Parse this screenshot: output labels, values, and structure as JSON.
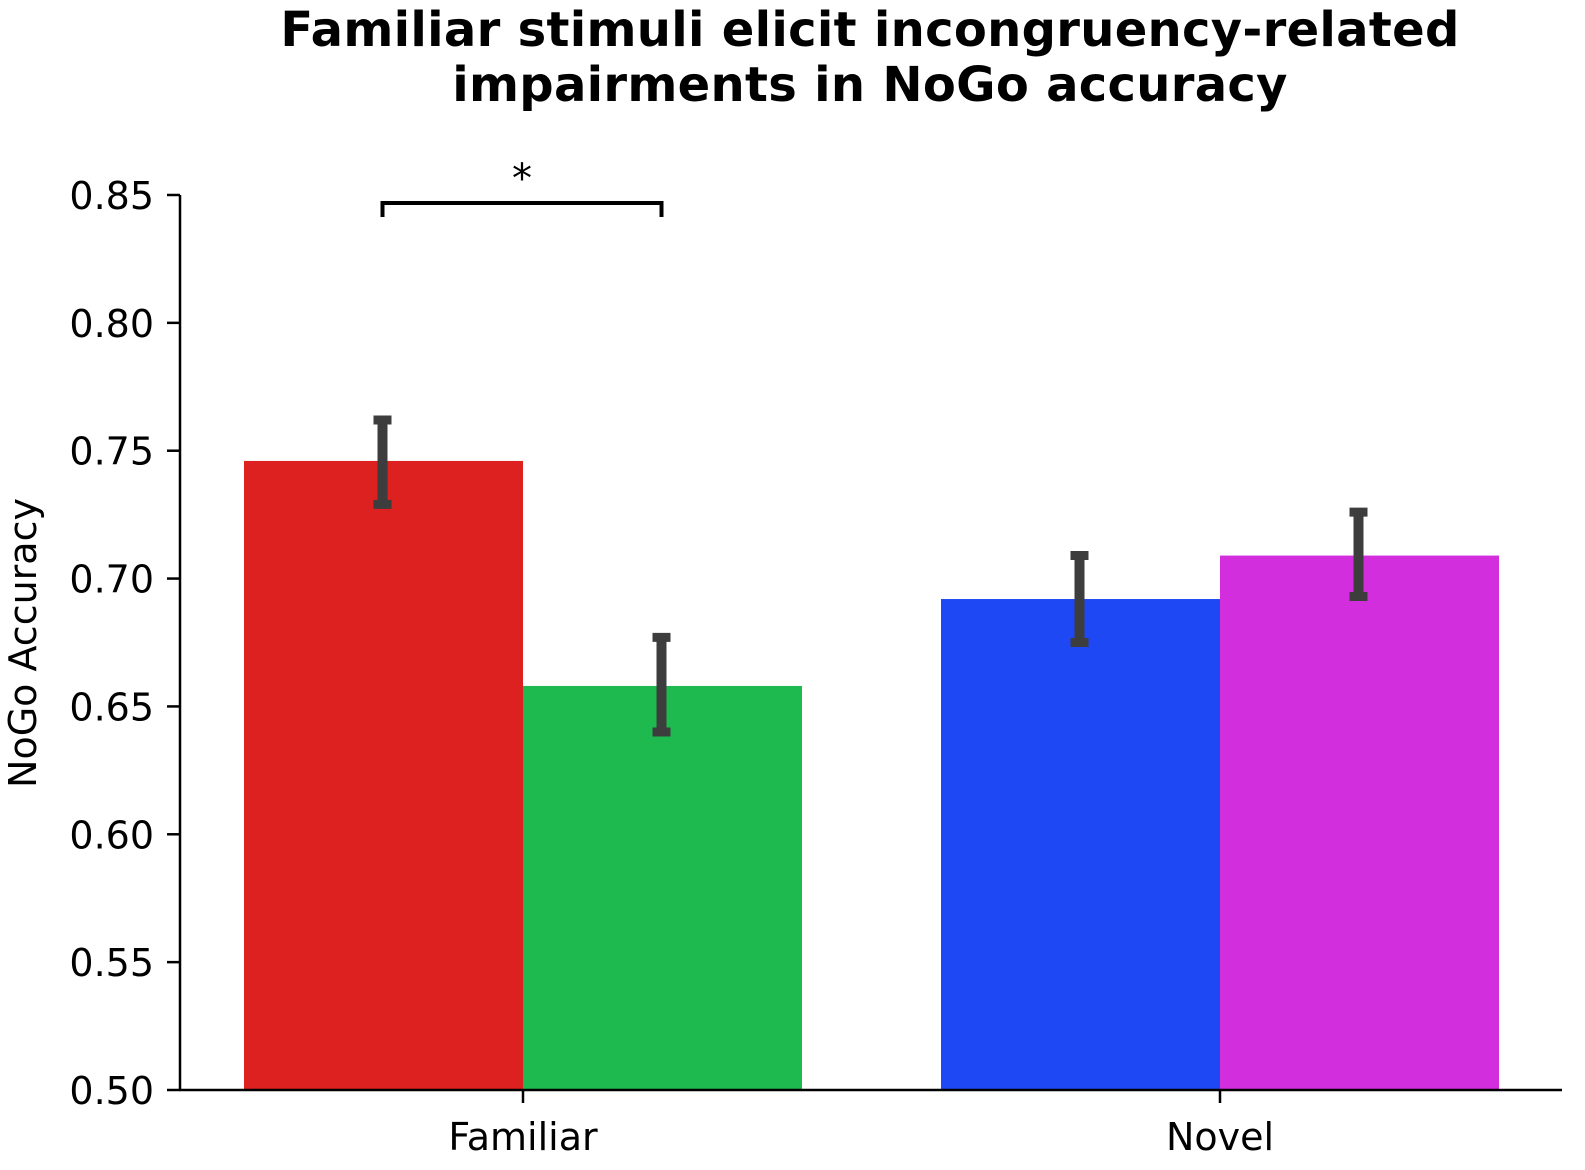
{
  "chart_data": {
    "type": "bar",
    "title_lines": [
      "Familiar stimuli elicit incongruency-related",
      "impairments in NoGo accuracy"
    ],
    "xlabel": "",
    "ylabel": "NoGo Accuracy",
    "ylim": [
      0.5,
      0.85
    ],
    "yticks": [
      0.5,
      0.55,
      0.6,
      0.65,
      0.7,
      0.75,
      0.8,
      0.85
    ],
    "ytick_labels": [
      "0.50",
      "0.55",
      "0.60",
      "0.65",
      "0.70",
      "0.75",
      "0.80",
      "0.85"
    ],
    "categories": [
      "Familiar",
      "Novel"
    ],
    "grid": false,
    "legend": "none",
    "bars": [
      {
        "category": "Familiar",
        "value": 0.746,
        "err_low": 0.729,
        "err_high": 0.762,
        "color": "#dd2020"
      },
      {
        "category": "Familiar",
        "value": 0.658,
        "err_low": 0.64,
        "err_high": 0.677,
        "color": "#1fba4f"
      },
      {
        "category": "Novel",
        "value": 0.692,
        "err_low": 0.675,
        "err_high": 0.709,
        "color": "#1f48f5"
      },
      {
        "category": "Novel",
        "value": 0.709,
        "err_low": 0.693,
        "err_high": 0.726,
        "color": "#d22ede"
      }
    ],
    "error_bar_color": "#3d3d3d",
    "annotations": [
      {
        "text": "*",
        "between_bars": [
          0,
          1
        ],
        "label": "significance"
      }
    ]
  }
}
